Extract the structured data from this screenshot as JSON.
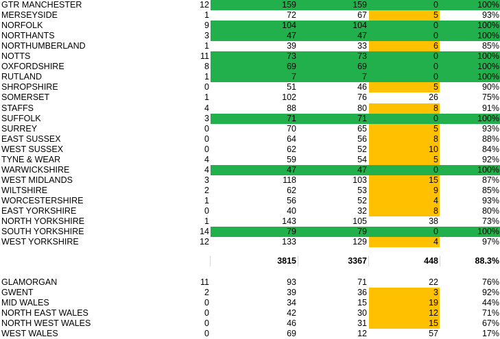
{
  "colors": {
    "green": "#21b04b",
    "orange": "#ffc000"
  },
  "rows": [
    {
      "name": "GTR MANCHESTER",
      "n": "12",
      "a": "159",
      "b": "159",
      "c": "0",
      "p": "100%",
      "hl": "green"
    },
    {
      "name": "MERSEYSIDE",
      "n": "1",
      "a": "72",
      "b": "67",
      "c": "5",
      "p": "93%",
      "hl": "orange"
    },
    {
      "name": "NORFOLK",
      "n": "9",
      "a": "104",
      "b": "104",
      "c": "0",
      "p": "100%",
      "hl": "green"
    },
    {
      "name": "NORTHANTS",
      "n": "3",
      "a": "47",
      "b": "47",
      "c": "0",
      "p": "100%",
      "hl": "green"
    },
    {
      "name": "NORTHUMBERLAND",
      "n": "1",
      "a": "39",
      "b": "33",
      "c": "6",
      "p": "85%",
      "hl": "orange"
    },
    {
      "name": "NOTTS",
      "n": "11",
      "a": "73",
      "b": "73",
      "c": "0",
      "p": "100%",
      "hl": "green"
    },
    {
      "name": "OXFORDSHIRE",
      "n": "8",
      "a": "69",
      "b": "69",
      "c": "0",
      "p": "100%",
      "hl": "green"
    },
    {
      "name": "RUTLAND",
      "n": "1",
      "a": "7",
      "b": "7",
      "c": "0",
      "p": "100%",
      "hl": "green"
    },
    {
      "name": "SHROPSHIRE",
      "n": "0",
      "a": "51",
      "b": "46",
      "c": "5",
      "p": "90%",
      "hl": "orange"
    },
    {
      "name": "SOMERSET",
      "n": "1",
      "a": "102",
      "b": "76",
      "c": "26",
      "p": "75%",
      "hl": ""
    },
    {
      "name": "STAFFS",
      "n": "4",
      "a": "88",
      "b": "80",
      "c": "8",
      "p": "91%",
      "hl": "orange"
    },
    {
      "name": "SUFFOLK",
      "n": "3",
      "a": "71",
      "b": "71",
      "c": "0",
      "p": "100%",
      "hl": "green"
    },
    {
      "name": "SURREY",
      "n": "0",
      "a": "70",
      "b": "65",
      "c": "5",
      "p": "93%",
      "hl": "orange"
    },
    {
      "name": "EAST SUSSEX",
      "n": "0",
      "a": "64",
      "b": "56",
      "c": "8",
      "p": "88%",
      "hl": "orange"
    },
    {
      "name": "WEST SUSSEX",
      "n": "0",
      "a": "62",
      "b": "52",
      "c": "10",
      "p": "84%",
      "hl": "orange"
    },
    {
      "name": "TYNE & WEAR",
      "n": "4",
      "a": "59",
      "b": "54",
      "c": "5",
      "p": "92%",
      "hl": "orange"
    },
    {
      "name": "WARWICKSHIRE",
      "n": "4",
      "a": "47",
      "b": "47",
      "c": "0",
      "p": "100%",
      "hl": "green"
    },
    {
      "name": "WEST MIDLANDS",
      "n": "3",
      "a": "118",
      "b": "103",
      "c": "15",
      "p": "87%",
      "hl": "orange"
    },
    {
      "name": "WILTSHIRE",
      "n": "2",
      "a": "62",
      "b": "53",
      "c": "9",
      "p": "85%",
      "hl": "orange"
    },
    {
      "name": "WORCESTERSHIRE",
      "n": "1",
      "a": "56",
      "b": "52",
      "c": "4",
      "p": "93%",
      "hl": "orange"
    },
    {
      "name": "EAST YORKSHIRE",
      "n": "0",
      "a": "40",
      "b": "32",
      "c": "8",
      "p": "80%",
      "hl": "orange"
    },
    {
      "name": "NORTH YORKSHIRE",
      "n": "1",
      "a": "143",
      "b": "105",
      "c": "38",
      "p": "73%",
      "hl": ""
    },
    {
      "name": "SOUTH YORKSHIRE",
      "n": "14",
      "a": "79",
      "b": "79",
      "c": "0",
      "p": "100%",
      "hl": "green"
    },
    {
      "name": "WEST YORKSHIRE",
      "n": "12",
      "a": "133",
      "b": "129",
      "c": "4",
      "p": "97%",
      "hl": "orange"
    }
  ],
  "totals": {
    "a": "3815",
    "b": "3367",
    "c": "448",
    "p": "88.3%"
  },
  "wales": [
    {
      "name": "GLAMORGAN",
      "n": "11",
      "a": "93",
      "b": "71",
      "c": "22",
      "p": "76%",
      "hl": ""
    },
    {
      "name": "GWENT",
      "n": "2",
      "a": "39",
      "b": "36",
      "c": "3",
      "p": "92%",
      "hl": "orange"
    },
    {
      "name": "MID WALES",
      "n": "0",
      "a": "34",
      "b": "15",
      "c": "19",
      "p": "44%",
      "hl": "orange"
    },
    {
      "name": "NORTH EAST WALES",
      "n": "0",
      "a": "42",
      "b": "30",
      "c": "12",
      "p": "71%",
      "hl": "orange"
    },
    {
      "name": "NORTH WEST WALES",
      "n": "0",
      "a": "46",
      "b": "31",
      "c": "15",
      "p": "67%",
      "hl": "orange"
    },
    {
      "name": "WEST WALES",
      "n": "0",
      "a": "69",
      "b": "12",
      "c": "57",
      "p": "17%",
      "hl": ""
    }
  ]
}
